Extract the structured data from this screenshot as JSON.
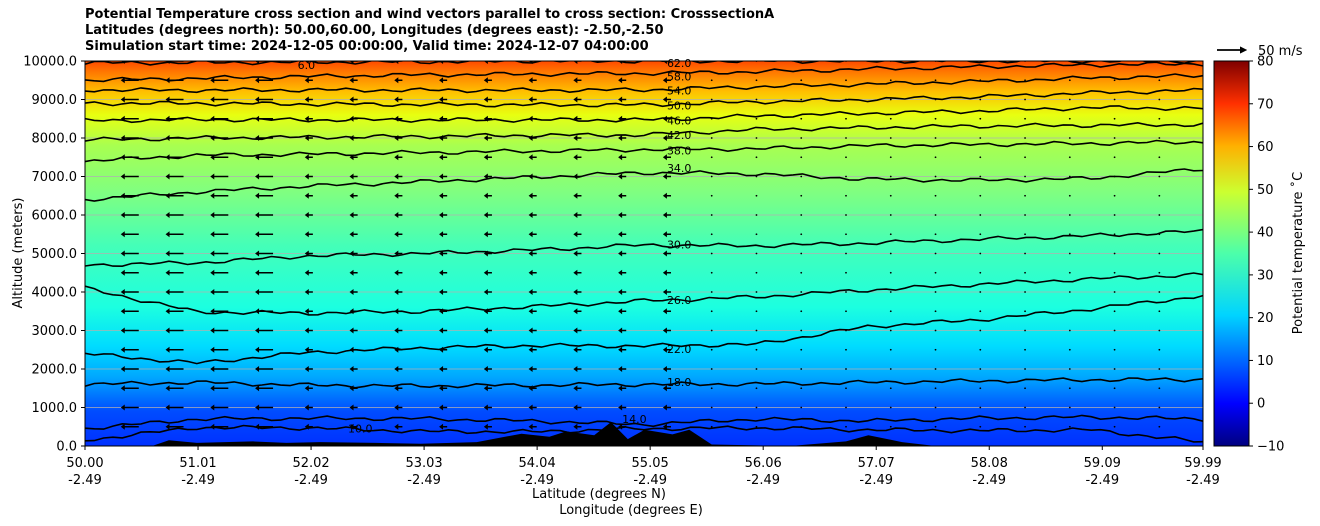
{
  "header": {
    "title_line1": "Potential Temperature cross section and wind vectors parallel to cross section: CrosssectionA",
    "title_line2": "Latitudes (degrees north): 50.00,60.00, Longitudes (degrees east): -2.50,-2.50",
    "title_line3": "Simulation start time: 2024-12-05 00:00:00, Valid time: 2024-12-07 04:00:00"
  },
  "chart_data": {
    "type": "contour",
    "x_axis": {
      "label_line1": "Latitude (degrees N)",
      "label_line2": "Longitude (degrees E)",
      "range": [
        50.0,
        59.99
      ],
      "ticks": [
        {
          "lat": "50.00",
          "lon": "-2.49",
          "value": 50.0
        },
        {
          "lat": "51.01",
          "lon": "-2.49",
          "value": 51.01
        },
        {
          "lat": "52.02",
          "lon": "-2.49",
          "value": 52.02
        },
        {
          "lat": "53.03",
          "lon": "-2.49",
          "value": 53.03
        },
        {
          "lat": "54.04",
          "lon": "-2.49",
          "value": 54.04
        },
        {
          "lat": "55.05",
          "lon": "-2.49",
          "value": 55.05
        },
        {
          "lat": "56.06",
          "lon": "-2.49",
          "value": 56.06
        },
        {
          "lat": "57.07",
          "lon": "-2.49",
          "value": 57.07
        },
        {
          "lat": "58.08",
          "lon": "-2.49",
          "value": 58.08
        },
        {
          "lat": "59.09",
          "lon": "-2.49",
          "value": 59.09
        },
        {
          "lat": "59.99",
          "lon": "-2.49",
          "value": 59.99
        }
      ]
    },
    "y_axis": {
      "label": "Altitude (meters)",
      "range": [
        0,
        10000
      ],
      "ticks": [
        "0.0",
        "1000.0",
        "2000.0",
        "3000.0",
        "4000.0",
        "5000.0",
        "6000.0",
        "7000.0",
        "8000.0",
        "9000.0",
        "10000.0"
      ],
      "tick_values": [
        0,
        1000,
        2000,
        3000,
        4000,
        5000,
        6000,
        7000,
        8000,
        9000,
        10000
      ]
    },
    "grid": "horizontal",
    "colorbar": {
      "label": "Potential temperature ˚C",
      "range": [
        -10,
        80
      ],
      "ticks": [
        "−10",
        "0",
        "10",
        "20",
        "30",
        "40",
        "50",
        "60",
        "70",
        "80"
      ],
      "tick_values": [
        -10,
        0,
        10,
        20,
        30,
        40,
        50,
        60,
        70,
        80
      ],
      "colormap": "jet"
    },
    "contour_labels": [
      {
        "text": "62.0",
        "lat": 55.2,
        "alt": 9950
      },
      {
        "text": "58.0",
        "lat": 55.2,
        "alt": 9600
      },
      {
        "text": "54.0",
        "lat": 55.2,
        "alt": 9230
      },
      {
        "text": "50.0",
        "lat": 55.2,
        "alt": 8850
      },
      {
        "text": "46.0",
        "lat": 55.2,
        "alt": 8450
      },
      {
        "text": "42.0",
        "lat": 55.2,
        "alt": 8080
      },
      {
        "text": "38.0",
        "lat": 55.2,
        "alt": 7680
      },
      {
        "text": "34.0",
        "lat": 55.2,
        "alt": 7220
      },
      {
        "text": "30.0",
        "lat": 55.2,
        "alt": 5240
      },
      {
        "text": "26.0",
        "lat": 55.2,
        "alt": 3790
      },
      {
        "text": "22.0",
        "lat": 55.2,
        "alt": 2520
      },
      {
        "text": "18.0",
        "lat": 55.2,
        "alt": 1660
      },
      {
        "text": "14.0",
        "lat": 54.8,
        "alt": 700
      },
      {
        "text": "10.0",
        "lat": 52.35,
        "alt": 450
      },
      {
        "text": "6.0",
        "lat": 51.9,
        "alt": 9900
      }
    ],
    "isentropes": [
      {
        "level": 62,
        "alt": [
          9950,
          9960,
          9970,
          9980,
          10000,
          10000,
          10000,
          10000,
          10000,
          10000,
          10000
        ]
      },
      {
        "level": 58,
        "alt": [
          9500,
          9550,
          9600,
          9640,
          9660,
          9680,
          9720,
          9790,
          9850,
          9900,
          9930
        ]
      },
      {
        "level": 54,
        "alt": [
          9250,
          9240,
          9250,
          9240,
          9240,
          9250,
          9330,
          9400,
          9470,
          9560,
          9620
        ]
      },
      {
        "level": 50,
        "alt": [
          8900,
          8900,
          8880,
          8870,
          8860,
          8860,
          8940,
          9000,
          9070,
          9170,
          9240
        ]
      },
      {
        "level": 46,
        "alt": [
          8450,
          8480,
          8470,
          8470,
          8470,
          8470,
          8570,
          8640,
          8700,
          8790,
          8770
        ]
      },
      {
        "level": 42,
        "alt": [
          7950,
          8000,
          8020,
          8040,
          8070,
          8080,
          8220,
          8270,
          8310,
          8330,
          8350
        ]
      },
      {
        "level": 38,
        "alt": [
          7400,
          7550,
          7580,
          7620,
          7660,
          7700,
          7720,
          7800,
          7830,
          7860,
          7900
        ]
      },
      {
        "level": 34,
        "alt": [
          6400,
          6600,
          6750,
          6860,
          6980,
          7100,
          7070,
          6930,
          6900,
          6950,
          7200
        ]
      },
      {
        "level": 30,
        "alt": [
          4700,
          4760,
          4940,
          5000,
          5090,
          5220,
          5200,
          5270,
          5370,
          5460,
          5580
        ]
      },
      {
        "level": 26,
        "alt": [
          4100,
          3480,
          3450,
          3500,
          3620,
          3770,
          3870,
          4050,
          4200,
          4340,
          4450
        ]
      },
      {
        "level": 22,
        "alt": [
          2400,
          2150,
          2430,
          2550,
          2610,
          2600,
          2640,
          3100,
          3280,
          3560,
          3900
        ]
      },
      {
        "level": 18,
        "alt": [
          1600,
          1650,
          1580,
          1560,
          1580,
          1600,
          1610,
          1650,
          1690,
          1720,
          1730
        ]
      },
      {
        "level": 14,
        "alt": [
          450,
          700,
          720,
          710,
          650,
          560,
          700,
          650,
          720,
          750,
          700
        ]
      },
      {
        "level": 10,
        "alt": [
          150,
          480,
          470,
          380,
          370,
          450,
          470,
          420,
          400,
          420,
          100
        ]
      }
    ],
    "wind_arrows": {
      "columns": [
        50.4,
        50.8,
        51.2,
        51.6,
        52.0,
        52.4,
        52.8,
        53.2,
        53.6,
        54.0,
        54.4,
        54.8,
        55.2,
        55.6,
        56.0,
        56.4,
        56.8,
        57.2,
        57.6,
        58.0,
        58.4,
        58.8,
        59.2,
        59.6
      ],
      "rows": [
        500,
        1000,
        1500,
        2000,
        2500,
        3000,
        3500,
        4000,
        4500,
        5000,
        5500,
        6000,
        6500,
        7000,
        7500,
        8000,
        8500,
        9000,
        9500,
        10000
      ],
      "direction": "southward",
      "reference_label": "50 m/s",
      "reference_speed_ms": 50
    },
    "terrain": [
      {
        "lat": 50.6,
        "alt": 0
      },
      {
        "lat": 50.75,
        "alt": 150
      },
      {
        "lat": 51.0,
        "alt": 80
      },
      {
        "lat": 51.5,
        "alt": 120
      },
      {
        "lat": 51.8,
        "alt": 80
      },
      {
        "lat": 52.1,
        "alt": 100
      },
      {
        "lat": 52.6,
        "alt": 80
      },
      {
        "lat": 53.0,
        "alt": 60
      },
      {
        "lat": 53.5,
        "alt": 100
      },
      {
        "lat": 53.9,
        "alt": 320
      },
      {
        "lat": 54.15,
        "alt": 240
      },
      {
        "lat": 54.3,
        "alt": 380
      },
      {
        "lat": 54.55,
        "alt": 280
      },
      {
        "lat": 54.7,
        "alt": 620
      },
      {
        "lat": 54.85,
        "alt": 180
      },
      {
        "lat": 55.0,
        "alt": 420
      },
      {
        "lat": 55.25,
        "alt": 300
      },
      {
        "lat": 55.4,
        "alt": 420
      },
      {
        "lat": 55.6,
        "alt": 40
      },
      {
        "lat": 56.3,
        "alt": 0
      },
      {
        "lat": 56.8,
        "alt": 120
      },
      {
        "lat": 57.0,
        "alt": 280
      },
      {
        "lat": 57.3,
        "alt": 100
      },
      {
        "lat": 57.6,
        "alt": 0
      }
    ]
  }
}
